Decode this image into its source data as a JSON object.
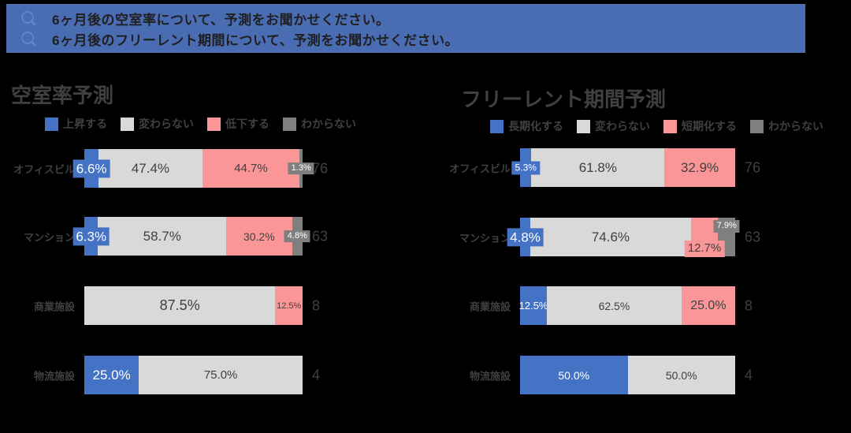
{
  "banner": {
    "bg_color": "#4A6CB3",
    "icon": "magnifier-q",
    "questions": [
      "6ヶ月後の空室率について、予測をお聞かせください。",
      "6ヶ月後のフリーレント期間について、予測をお聞かせください。"
    ]
  },
  "colors": {
    "banner_blue": "#4A6CB3",
    "bar_blue": "#4472C4",
    "bar_lightgray": "#D9D9D9",
    "bar_pink": "#FB9698",
    "bar_darkgray": "#7F7F7F",
    "text_dark": "#404040",
    "label_white": "#FFFFFF"
  },
  "chart_data": [
    {
      "type": "bar",
      "variant": "horizontal-100pct-stacked",
      "title": "空室率予測",
      "categories": [
        "オフィスビル",
        "マンション",
        "商業施設",
        "物流施設"
      ],
      "sample_sizes": [
        76,
        63,
        8,
        4
      ],
      "series": [
        {
          "key": "rise",
          "name": "上昇する",
          "color": "#4472C4",
          "label_color": "#FFFFFF"
        },
        {
          "key": "same",
          "name": "変わらない",
          "color": "#D9D9D9",
          "label_color": "#404040"
        },
        {
          "key": "fall",
          "name": "低下する",
          "color": "#FB9698",
          "label_color": "#404040"
        },
        {
          "key": "unknown",
          "name": "わからない",
          "color": "#7F7F7F",
          "label_color": "#FFFFFF"
        }
      ],
      "rows": [
        {
          "category": "オフィスビル",
          "n": 76,
          "segments": [
            {
              "series": 0,
              "value": 6.6,
              "label": "6.6%",
              "fs": 17,
              "place": "badge"
            },
            {
              "series": 1,
              "value": 47.4,
              "label": "47.4%",
              "fs": 17,
              "place": "in"
            },
            {
              "series": 2,
              "value": 44.7,
              "label": "44.7%",
              "fs": 15,
              "place": "in"
            },
            {
              "series": 3,
              "value": 1.3,
              "label": "1.3%",
              "fs": 11,
              "place": "badge"
            }
          ]
        },
        {
          "category": "マンション",
          "n": 63,
          "segments": [
            {
              "series": 0,
              "value": 6.3,
              "label": "6.3%",
              "fs": 17,
              "place": "badge"
            },
            {
              "series": 1,
              "value": 58.7,
              "label": "58.7%",
              "fs": 17,
              "place": "in"
            },
            {
              "series": 2,
              "value": 30.2,
              "label": "30.2%",
              "fs": 14,
              "place": "in"
            },
            {
              "series": 3,
              "value": 4.8,
              "label": "4.8%",
              "fs": 11,
              "place": "badge"
            }
          ]
        },
        {
          "category": "商業施設",
          "n": 8,
          "segments": [
            {
              "series": 1,
              "value": 87.5,
              "label": "87.5%",
              "fs": 18,
              "place": "in"
            },
            {
              "series": 2,
              "value": 12.5,
              "label": "12.5%",
              "fs": 11,
              "place": "in"
            }
          ]
        },
        {
          "category": "物流施設",
          "n": 4,
          "segments": [
            {
              "series": 0,
              "value": 25.0,
              "label": "25.0%",
              "fs": 17,
              "place": "in"
            },
            {
              "series": 1,
              "value": 75.0,
              "label": "75.0%",
              "fs": 15,
              "place": "in"
            }
          ]
        }
      ]
    },
    {
      "type": "bar",
      "variant": "horizontal-100pct-stacked",
      "title": "フリーレント期間予測",
      "categories": [
        "オフィスビル",
        "マンション",
        "商業施設",
        "物流施設"
      ],
      "sample_sizes": [
        76,
        63,
        8,
        4
      ],
      "series": [
        {
          "key": "longer",
          "name": "長期化する",
          "color": "#4472C4",
          "label_color": "#FFFFFF"
        },
        {
          "key": "same",
          "name": "変わらない",
          "color": "#D9D9D9",
          "label_color": "#404040"
        },
        {
          "key": "shorter",
          "name": "短期化する",
          "color": "#FB9698",
          "label_color": "#404040"
        },
        {
          "key": "unknown",
          "name": "わからない",
          "color": "#7F7F7F",
          "label_color": "#FFFFFF"
        }
      ],
      "rows": [
        {
          "category": "オフィスビル",
          "n": 76,
          "segments": [
            {
              "series": 0,
              "value": 5.3,
              "label": "5.3%",
              "fs": 12,
              "place": "badge"
            },
            {
              "series": 1,
              "value": 61.8,
              "label": "61.8%",
              "fs": 17,
              "place": "in"
            },
            {
              "series": 2,
              "value": 32.9,
              "label": "32.9%",
              "fs": 17,
              "place": "in"
            }
          ]
        },
        {
          "category": "マンション",
          "n": 63,
          "segments": [
            {
              "series": 0,
              "value": 4.8,
              "label": "4.8%",
              "fs": 17,
              "place": "badge"
            },
            {
              "series": 1,
              "value": 74.6,
              "label": "74.6%",
              "fs": 17,
              "place": "in"
            },
            {
              "series": 2,
              "value": 12.7,
              "label": "12.7%",
              "fs": 15,
              "place": "below"
            },
            {
              "series": 3,
              "value": 7.9,
              "label": "7.9%",
              "fs": 11,
              "place": "above"
            }
          ]
        },
        {
          "category": "商業施設",
          "n": 8,
          "segments": [
            {
              "series": 0,
              "value": 12.5,
              "label": "12.5%",
              "fs": 13,
              "place": "in"
            },
            {
              "series": 1,
              "value": 62.5,
              "label": "62.5%",
              "fs": 14,
              "place": "in"
            },
            {
              "series": 2,
              "value": 25.0,
              "label": "25.0%",
              "fs": 16,
              "place": "in"
            }
          ]
        },
        {
          "category": "物流施設",
          "n": 4,
          "segments": [
            {
              "series": 0,
              "value": 50.0,
              "label": "50.0%",
              "fs": 14,
              "place": "in"
            },
            {
              "series": 1,
              "value": 50.0,
              "label": "50.0%",
              "fs": 14,
              "place": "in"
            }
          ]
        }
      ]
    }
  ]
}
